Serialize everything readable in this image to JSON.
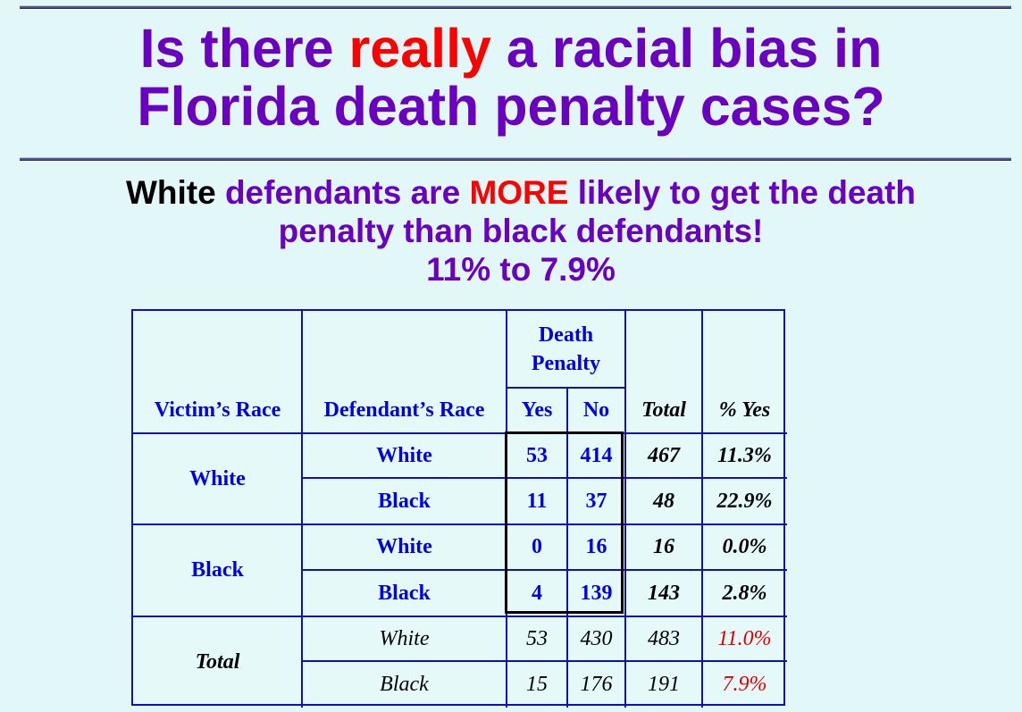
{
  "title": {
    "line1_pre": "Is there ",
    "line1_em": "really",
    "line1_post": " a racial bias in",
    "line2": "Florida death penalty cases?"
  },
  "subtitle": {
    "white": "White",
    "part1": " defendants are ",
    "more": "MORE",
    "part2": " likely to get the death",
    "line2": "penalty than black defendants!",
    "line3": "11% to 7.9%"
  },
  "colors": {
    "title": "#6a00c0",
    "emphasis": "#ff0000",
    "table_text": "#0000e0",
    "table_border": "#1010b8",
    "background": "#e2f7f8"
  },
  "table": {
    "headers": {
      "victim": "Victim’s Race",
      "defendant": "Defendant’s Race",
      "death_penalty": "Death Penalty",
      "yes": "Yes",
      "no": "No",
      "total": "Total",
      "pct_yes": "% Yes"
    },
    "groups": [
      {
        "victim": "White",
        "rows": [
          {
            "defendant": "White",
            "yes": "53",
            "no": "414",
            "total": "467",
            "pct": "11.3%"
          },
          {
            "defendant": "Black",
            "yes": "11",
            "no": "37",
            "total": "48",
            "pct": "22.9%"
          }
        ]
      },
      {
        "victim": "Black",
        "rows": [
          {
            "defendant": "White",
            "yes": "0",
            "no": "16",
            "total": "16",
            "pct": "0.0%"
          },
          {
            "defendant": "Black",
            "yes": "4",
            "no": "139",
            "total": "143",
            "pct": "2.8%"
          }
        ]
      },
      {
        "victim": "Total",
        "rows": [
          {
            "defendant": "White",
            "yes": "53",
            "no": "430",
            "total": "483",
            "pct": "11.0%"
          },
          {
            "defendant": "Black",
            "yes": "15",
            "no": "176",
            "total": "191",
            "pct": "7.9%"
          }
        ]
      }
    ]
  }
}
